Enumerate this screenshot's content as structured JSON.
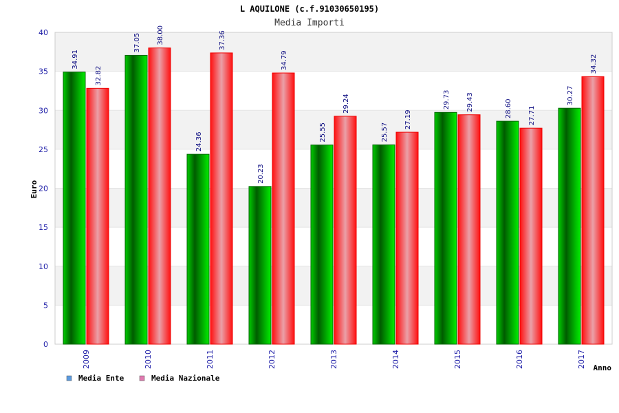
{
  "chart_data": {
    "type": "bar",
    "title": "L AQUILONE (c.f.91030650195)",
    "subtitle": "Media Importi",
    "xlabel": "Anno",
    "ylabel": "Euro",
    "ylim": [
      0,
      40
    ],
    "yticks": [
      0,
      5,
      10,
      15,
      20,
      25,
      30,
      35,
      40
    ],
    "categories": [
      "2009",
      "2010",
      "2011",
      "2012",
      "2013",
      "2014",
      "2015",
      "2016",
      "2017"
    ],
    "series": [
      {
        "name": "Media Ente",
        "values": [
          34.91,
          37.05,
          24.36,
          20.23,
          25.55,
          25.57,
          29.73,
          28.6,
          30.27
        ],
        "labels": [
          "34.91",
          "37.05",
          "24.36",
          "20.23",
          "25.55",
          "25.57",
          "29.73",
          "28.60",
          "30.27"
        ]
      },
      {
        "name": "Media Nazionale",
        "values": [
          32.82,
          38.0,
          37.36,
          34.79,
          29.24,
          27.19,
          29.43,
          27.71,
          34.32
        ],
        "labels": [
          "32.82",
          "38.00",
          "37.36",
          "34.79",
          "29.24",
          "27.19",
          "29.43",
          "27.71",
          "34.32"
        ]
      }
    ],
    "grid": true,
    "legend_position": "bottom-left",
    "colors": {
      "ente_dark": "#006400",
      "ente_light": "#00ee00",
      "naz_dark": "#ee0000",
      "naz_light": "#f0a0a8",
      "legend_ente": "#5b9be0",
      "legend_naz": "#e07ab0",
      "band": "#f2f2f2",
      "text": "#1a1aa6"
    }
  }
}
